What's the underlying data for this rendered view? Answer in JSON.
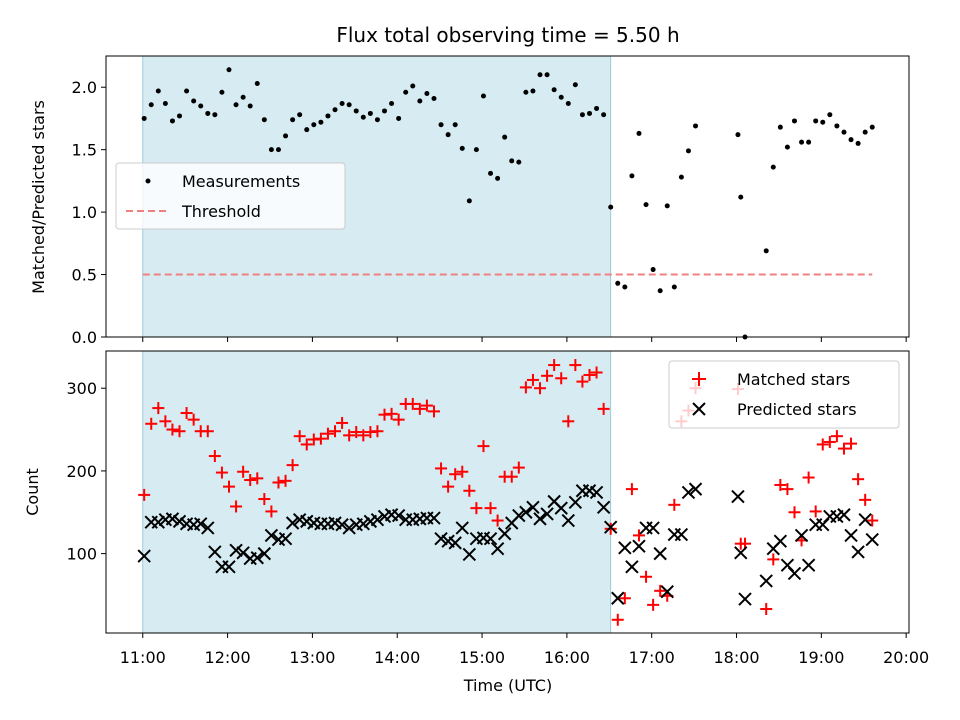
{
  "chart_data": [
    {
      "type": "scatter",
      "title": "Flux total observing time = 5.50 h",
      "xlabel": "",
      "ylabel": "Matched/Predicted stars",
      "ylim": [
        0,
        2.25
      ],
      "xlim": [
        "10:34",
        "20:02"
      ],
      "yticks": [
        "0.0",
        "0.5",
        "1.0",
        "1.5",
        "2.0"
      ],
      "shaded_interval": [
        "11:00",
        "16:31"
      ],
      "shade_color": "#add8e6",
      "legend_position": "center-left",
      "series": [
        {
          "name": "Measurements",
          "color": "#000000",
          "x": [
            "11:01",
            "11:06",
            "11:11",
            "11:16",
            "11:21",
            "11:26",
            "11:31",
            "11:36",
            "11:41",
            "11:46",
            "11:51",
            "11:56",
            "12:01",
            "12:06",
            "12:11",
            "12:16",
            "12:21",
            "12:26",
            "12:31",
            "12:36",
            "12:41",
            "12:46",
            "12:51",
            "12:56",
            "13:01",
            "13:06",
            "13:11",
            "13:16",
            "13:21",
            "13:26",
            "13:31",
            "13:36",
            "13:41",
            "13:46",
            "13:51",
            "13:56",
            "14:01",
            "14:06",
            "14:11",
            "14:16",
            "14:21",
            "14:26",
            "14:31",
            "14:36",
            "14:41",
            "14:46",
            "14:51",
            "14:56",
            "15:01",
            "15:06",
            "15:11",
            "15:16",
            "15:21",
            "15:26",
            "15:31",
            "15:36",
            "15:41",
            "15:46",
            "15:51",
            "15:56",
            "16:01",
            "16:06",
            "16:11",
            "16:16",
            "16:21",
            "16:26",
            "16:31",
            "16:36",
            "16:41",
            "16:46",
            "16:51",
            "16:56",
            "17:01",
            "17:06",
            "17:11",
            "17:16",
            "17:21",
            "17:26",
            "17:31",
            "18:01",
            "18:03",
            "18:06",
            "18:21",
            "18:26",
            "18:31",
            "18:36",
            "18:41",
            "18:46",
            "18:51",
            "18:56",
            "19:01",
            "19:06",
            "19:11",
            "19:16",
            "19:21",
            "19:26",
            "19:31",
            "19:36"
          ],
          "y": [
            1.75,
            1.86,
            1.97,
            1.87,
            1.73,
            1.77,
            1.97,
            1.89,
            1.85,
            1.79,
            1.78,
            1.96,
            2.14,
            1.86,
            1.92,
            1.85,
            2.03,
            1.74,
            1.5,
            1.5,
            1.61,
            1.74,
            1.78,
            1.66,
            1.7,
            1.72,
            1.77,
            1.82,
            1.87,
            1.86,
            1.81,
            1.76,
            1.79,
            1.74,
            1.81,
            1.87,
            1.75,
            1.96,
            2.01,
            1.89,
            1.95,
            1.91,
            1.7,
            1.62,
            1.7,
            1.51,
            1.09,
            1.5,
            1.93,
            1.31,
            1.27,
            1.6,
            1.41,
            1.4,
            1.96,
            1.97,
            2.1,
            2.1,
            1.98,
            1.92,
            1.87,
            2.02,
            1.78,
            1.79,
            1.83,
            1.78,
            1.04,
            0.43,
            0.4,
            1.29,
            1.63,
            1.06,
            0.54,
            0.37,
            1.05,
            0.4,
            1.28,
            1.49,
            1.69,
            1.62,
            1.12,
            0.0,
            0.69,
            1.36,
            1.68,
            1.52,
            1.73,
            1.56,
            1.56,
            1.73,
            1.72,
            1.78,
            1.69,
            1.64,
            1.58,
            1.55,
            1.64,
            1.68
          ]
        },
        {
          "name": "Threshold",
          "color": "#f08080",
          "style": "dashed",
          "x": [
            "11:00",
            "19:36"
          ],
          "y": [
            0.5,
            0.5
          ]
        }
      ]
    },
    {
      "type": "scatter",
      "title": "",
      "xlabel": "Time (UTC)",
      "ylabel": "Count",
      "ylim": [
        4,
        345
      ],
      "xlim": [
        "10:34",
        "20:02"
      ],
      "yticks": [
        "100",
        "200",
        "300"
      ],
      "xticks": [
        "11:00",
        "12:00",
        "13:00",
        "14:00",
        "15:00",
        "16:00",
        "17:00",
        "18:00",
        "19:00",
        "20:00"
      ],
      "shaded_interval": [
        "11:00",
        "16:31"
      ],
      "shade_color": "#add8e6",
      "legend_position": "top-right",
      "series": [
        {
          "name": "Matched stars",
          "color": "#ff0000",
          "marker": "plus",
          "x": [
            "11:01",
            "11:06",
            "11:11",
            "11:16",
            "11:21",
            "11:26",
            "11:31",
            "11:36",
            "11:41",
            "11:46",
            "11:51",
            "11:56",
            "12:01",
            "12:06",
            "12:11",
            "12:16",
            "12:21",
            "12:26",
            "12:31",
            "12:36",
            "12:41",
            "12:46",
            "12:51",
            "12:56",
            "13:01",
            "13:06",
            "13:11",
            "13:16",
            "13:21",
            "13:26",
            "13:31",
            "13:36",
            "13:41",
            "13:46",
            "13:51",
            "13:56",
            "14:01",
            "14:06",
            "14:11",
            "14:16",
            "14:21",
            "14:26",
            "14:31",
            "14:36",
            "14:41",
            "14:46",
            "14:51",
            "14:56",
            "15:01",
            "15:06",
            "15:11",
            "15:16",
            "15:21",
            "15:26",
            "15:31",
            "15:36",
            "15:41",
            "15:46",
            "15:51",
            "15:56",
            "16:01",
            "16:06",
            "16:11",
            "16:16",
            "16:21",
            "16:26",
            "16:31",
            "16:36",
            "16:41",
            "16:46",
            "16:51",
            "16:56",
            "17:01",
            "17:06",
            "17:11",
            "17:16",
            "17:21",
            "17:26",
            "17:31",
            "18:01",
            "18:03",
            "18:06",
            "18:21",
            "18:26",
            "18:31",
            "18:36",
            "18:41",
            "18:46",
            "18:51",
            "18:56",
            "19:01",
            "19:06",
            "19:11",
            "19:16",
            "19:21",
            "19:26",
            "19:31",
            "19:36"
          ],
          "y": [
            171,
            257,
            276,
            260,
            250,
            248,
            270,
            262,
            248,
            248,
            218,
            198,
            181,
            157,
            199,
            189,
            191,
            166,
            151,
            186,
            188,
            207,
            242,
            232,
            238,
            239,
            245,
            248,
            258,
            243,
            247,
            243,
            247,
            248,
            268,
            269,
            262,
            281,
            281,
            275,
            279,
            272,
            203,
            181,
            196,
            199,
            176,
            155,
            230,
            155,
            140,
            193,
            193,
            204,
            301,
            310,
            300,
            315,
            328,
            312,
            260,
            328,
            308,
            316,
            319,
            275,
            130,
            20,
            46,
            178,
            122,
            72,
            38,
            55,
            49,
            159,
            260,
            273,
            300,
            299,
            112,
            112,
            33,
            93,
            183,
            178,
            150,
            116,
            192,
            151,
            232,
            235,
            242,
            227,
            233,
            190,
            165,
            140
          ]
        },
        {
          "name": "Predicted stars",
          "color": "#000000",
          "marker": "x",
          "x": [
            "11:01",
            "11:06",
            "11:11",
            "11:16",
            "11:21",
            "11:26",
            "11:31",
            "11:36",
            "11:41",
            "11:46",
            "11:51",
            "11:56",
            "12:01",
            "12:06",
            "12:11",
            "12:16",
            "12:21",
            "12:26",
            "12:31",
            "12:36",
            "12:41",
            "12:46",
            "12:51",
            "12:56",
            "13:01",
            "13:06",
            "13:11",
            "13:16",
            "13:21",
            "13:26",
            "13:31",
            "13:36",
            "13:41",
            "13:46",
            "13:51",
            "13:56",
            "14:01",
            "14:06",
            "14:11",
            "14:16",
            "14:21",
            "14:26",
            "14:31",
            "14:36",
            "14:41",
            "14:46",
            "14:51",
            "14:56",
            "15:01",
            "15:06",
            "15:11",
            "15:16",
            "15:21",
            "15:26",
            "15:31",
            "15:36",
            "15:41",
            "15:46",
            "15:51",
            "15:56",
            "16:01",
            "16:06",
            "16:11",
            "16:16",
            "16:21",
            "16:26",
            "16:31",
            "16:36",
            "16:41",
            "16:46",
            "16:51",
            "16:56",
            "17:01",
            "17:06",
            "17:11",
            "17:16",
            "17:21",
            "17:26",
            "17:31",
            "18:01",
            "18:03",
            "18:06",
            "18:21",
            "18:26",
            "18:31",
            "18:36",
            "18:41",
            "18:46",
            "18:51",
            "18:56",
            "19:01",
            "19:06",
            "19:11",
            "19:16",
            "19:21",
            "19:26",
            "19:31",
            "19:36"
          ],
          "y": [
            97,
            138,
            138,
            141,
            142,
            139,
            136,
            135,
            136,
            131,
            102,
            84,
            84,
            104,
            101,
            94,
            95,
            100,
            122,
            117,
            118,
            137,
            141,
            139,
            137,
            136,
            136,
            137,
            135,
            131,
            135,
            136,
            139,
            141,
            145,
            147,
            146,
            141,
            141,
            142,
            143,
            143,
            118,
            115,
            113,
            131,
            99,
            118,
            119,
            118,
            106,
            124,
            137,
            146,
            150,
            156,
            142,
            148,
            163,
            155,
            140,
            162,
            176,
            176,
            174,
            156,
            132,
            46,
            107,
            84,
            109,
            131,
            131,
            100,
            54,
            123,
            123,
            174,
            178,
            169,
            101,
            45,
            67,
            106,
            115,
            86,
            76,
            122,
            86,
            135,
            135,
            145,
            145,
            147,
            122,
            102,
            141,
            117
          ]
        }
      ]
    }
  ]
}
